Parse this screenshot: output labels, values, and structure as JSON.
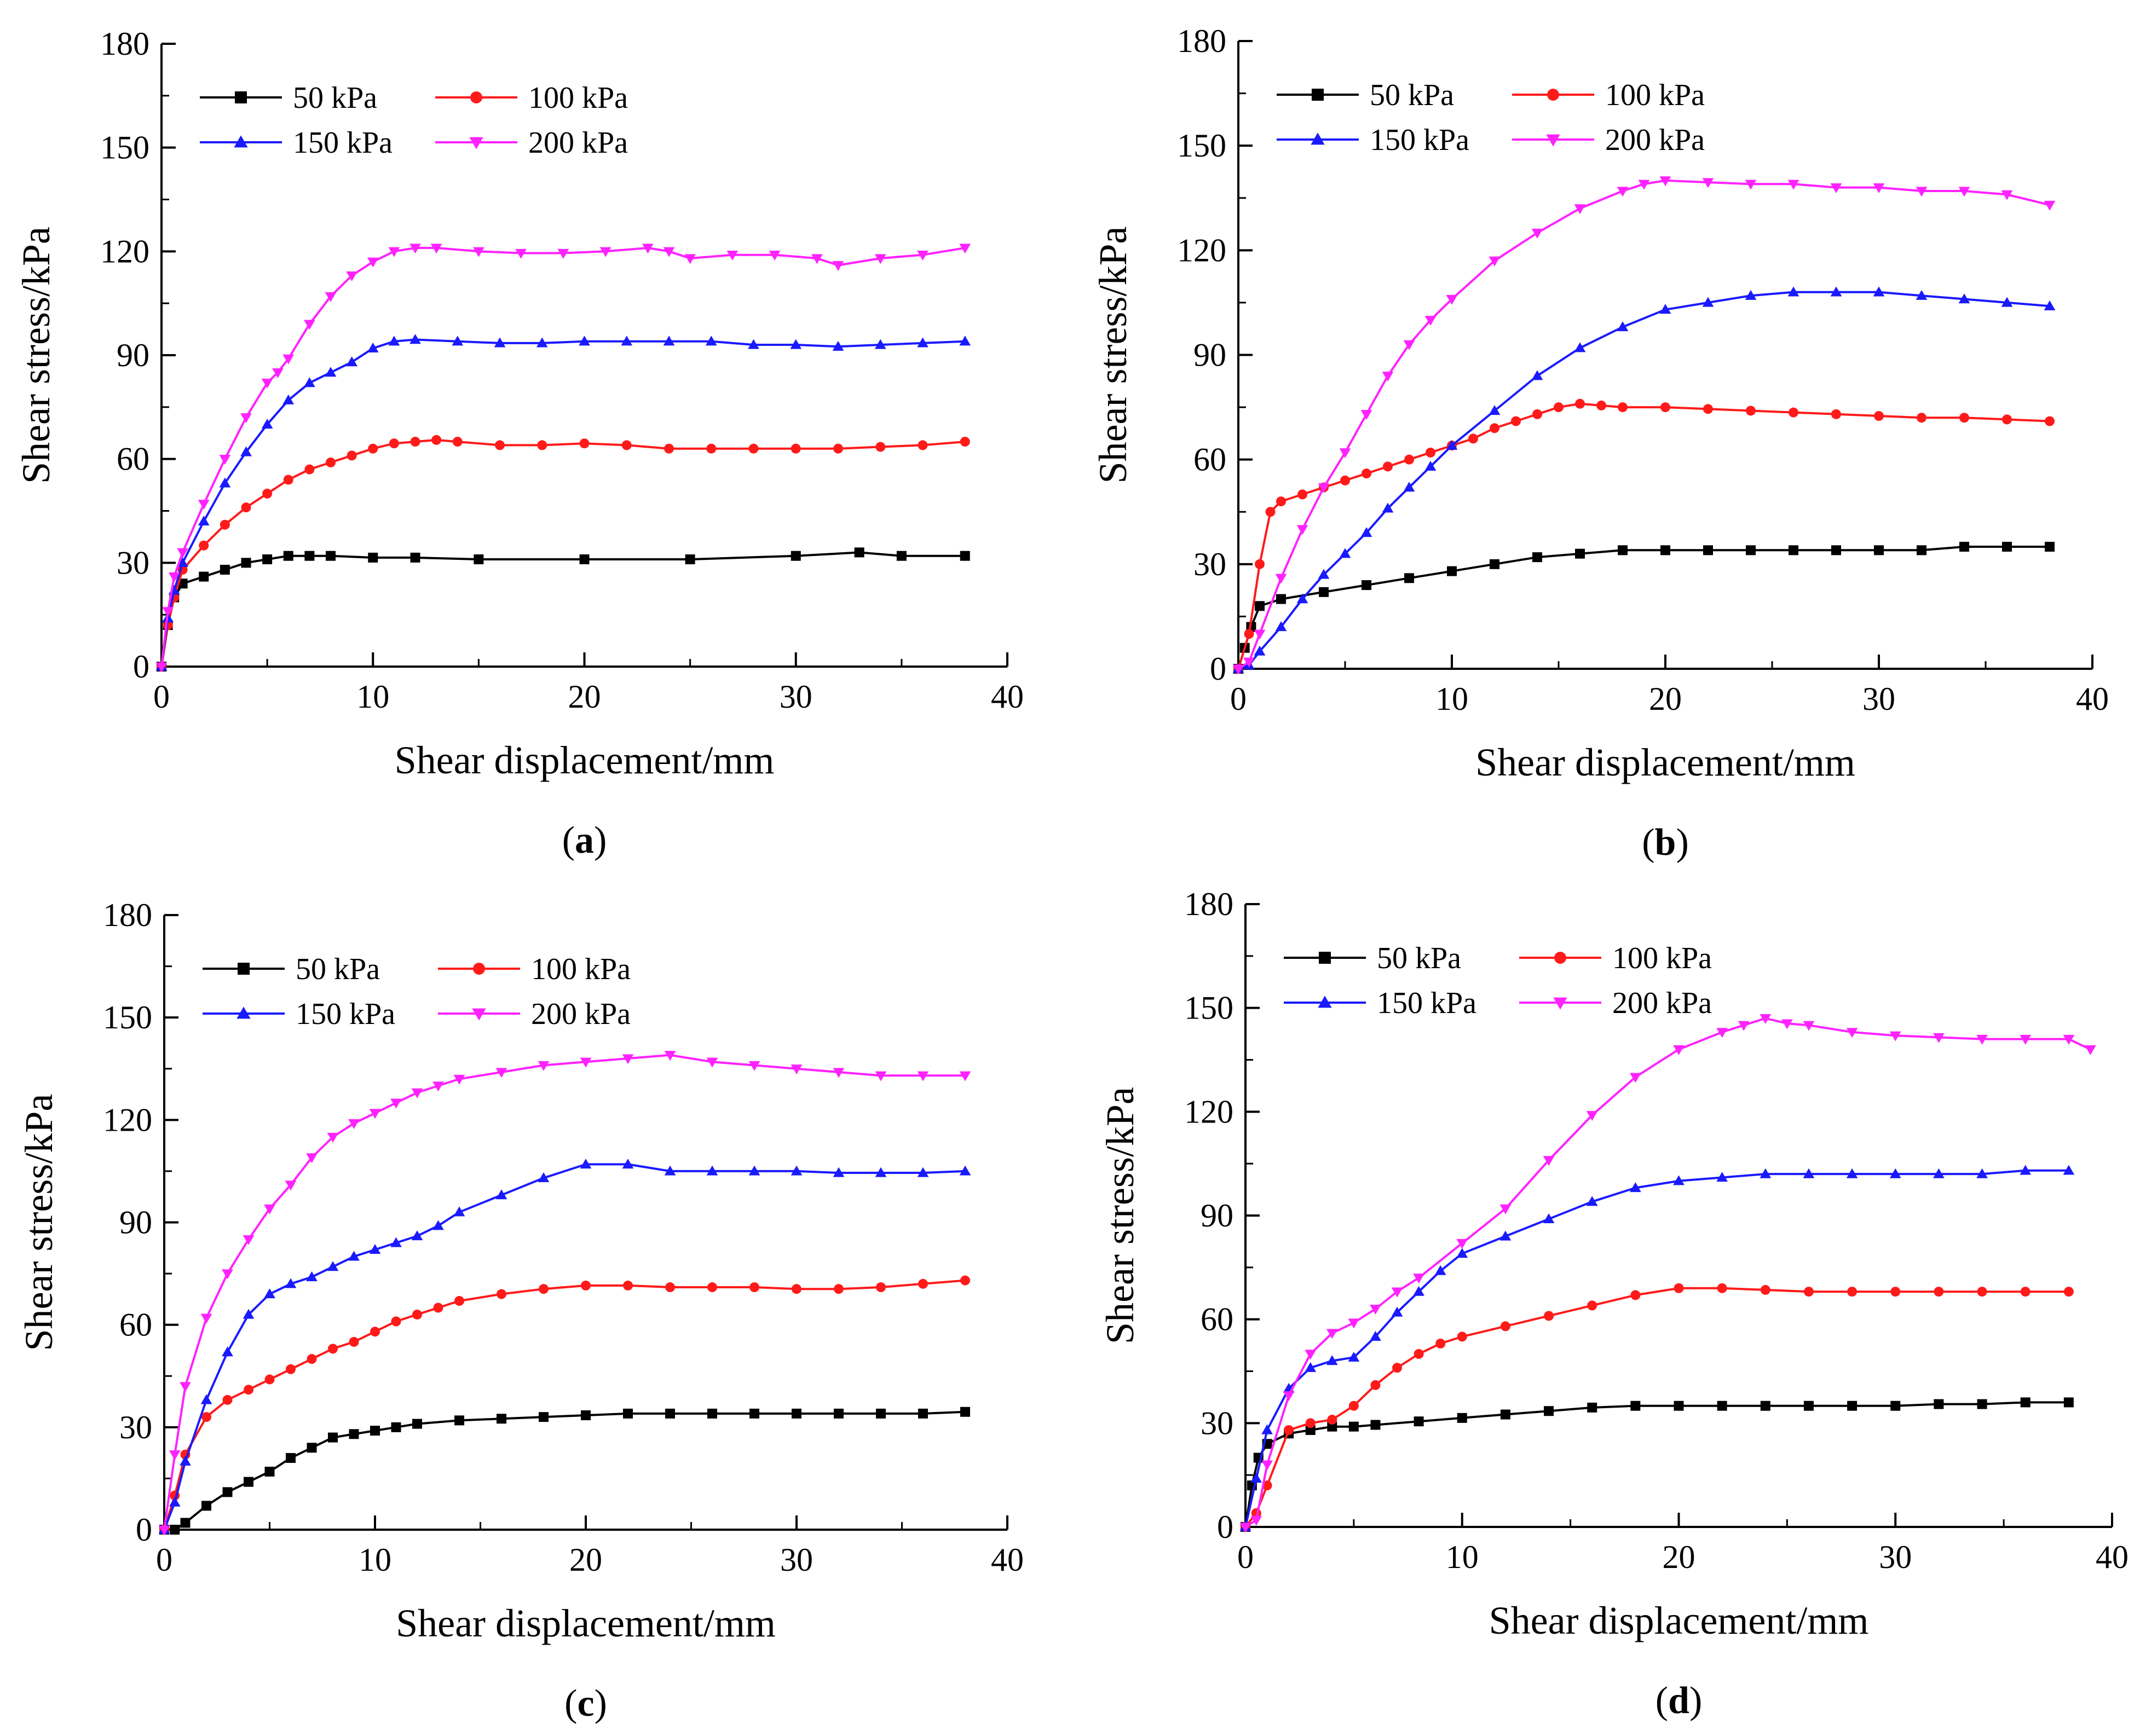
{
  "figure": {
    "panels_layout": "2x2 grid",
    "colors": {
      "50 kPa": "#000000",
      "100 kPa": "#ff1a1a",
      "150 kPa": "#1a1aff",
      "200 kPa": "#ff22ff"
    },
    "markers": {
      "50 kPa": "square",
      "100 kPa": "circle",
      "150 kPa": "triangle-up",
      "200 kPa": "triangle-down"
    }
  },
  "chart_data": [
    {
      "panel": "a",
      "caption": "(a)",
      "caption_letter": "a",
      "type": "line",
      "xlabel": "Shear displacement/mm",
      "ylabel": "Shear stress/kPa",
      "xlim": [
        0,
        40
      ],
      "ylim": [
        0,
        180
      ],
      "xticks": [
        "0",
        "10",
        "20",
        "30",
        "40"
      ],
      "yticks": [
        "0",
        "30",
        "60",
        "90",
        "120",
        "150",
        "180"
      ],
      "legend_position": "top-left",
      "series": [
        {
          "name": "50 kPa",
          "x": [
            0,
            0.3,
            0.6,
            1,
            2,
            3,
            4,
            5,
            6,
            7,
            8,
            10,
            12,
            15,
            20,
            25,
            30,
            33,
            35,
            38
          ],
          "y": [
            0,
            12,
            20,
            24,
            26,
            28,
            30,
            31,
            32,
            32,
            32,
            31.5,
            31.5,
            31,
            31,
            31,
            32,
            33,
            32,
            32
          ]
        },
        {
          "name": "100 kPa",
          "x": [
            0,
            0.3,
            0.6,
            1,
            2,
            3,
            4,
            5,
            6,
            7,
            8,
            9,
            10,
            11,
            12,
            13,
            14,
            16,
            18,
            20,
            22,
            24,
            26,
            28,
            30,
            32,
            34,
            36,
            38
          ],
          "y": [
            0,
            12,
            20,
            28,
            35,
            41,
            46,
            50,
            54,
            57,
            59,
            61,
            63,
            64.5,
            65,
            65.5,
            65,
            64,
            64,
            64.5,
            64,
            63,
            63,
            63,
            63,
            63,
            63.5,
            64,
            65
          ]
        },
        {
          "name": "150 kPa",
          "x": [
            0,
            0.3,
            0.6,
            1,
            2,
            3,
            4,
            5,
            6,
            7,
            8,
            9,
            10,
            11,
            12,
            14,
            16,
            18,
            20,
            22,
            24,
            26,
            28,
            30,
            32,
            34,
            36,
            38
          ],
          "y": [
            0,
            14,
            22,
            30,
            42,
            53,
            62,
            70,
            77,
            82,
            85,
            88,
            92,
            94,
            94.5,
            94,
            93.5,
            93.5,
            94,
            94,
            94,
            94,
            93,
            93,
            92.5,
            93,
            93.5,
            94
          ]
        },
        {
          "name": "200 kPa",
          "x": [
            0,
            0.3,
            0.6,
            1,
            2,
            3,
            4,
            5,
            5.5,
            6,
            7,
            8,
            9,
            10,
            11,
            12,
            13,
            15,
            17,
            19,
            21,
            23,
            24,
            25,
            27,
            29,
            31,
            32,
            34,
            36,
            38
          ],
          "y": [
            0,
            16,
            26,
            33,
            47,
            60,
            72,
            82,
            85,
            89,
            99,
            107,
            113,
            117,
            120,
            121,
            121,
            120,
            119.5,
            119.5,
            120,
            121,
            120,
            118,
            119,
            119,
            118,
            116,
            118,
            119,
            121
          ]
        }
      ]
    },
    {
      "panel": "b",
      "caption": "(b)",
      "caption_letter": "b",
      "type": "line",
      "xlabel": "Shear displacement/mm",
      "ylabel": "Shear stress/kPa",
      "xlim": [
        0,
        40
      ],
      "ylim": [
        0,
        180
      ],
      "xticks": [
        "0",
        "10",
        "20",
        "30",
        "40"
      ],
      "yticks": [
        "0",
        "30",
        "60",
        "90",
        "120",
        "150",
        "180"
      ],
      "legend_position": "top-left",
      "series": [
        {
          "name": "50 kPa",
          "x": [
            0,
            0.3,
            0.6,
            1,
            2,
            4,
            6,
            8,
            10,
            12,
            14,
            16,
            18,
            20,
            22,
            24,
            26,
            28,
            30,
            32,
            34,
            36,
            38
          ],
          "y": [
            0,
            6,
            12,
            18,
            20,
            22,
            24,
            26,
            28,
            30,
            32,
            33,
            34,
            34,
            34,
            34,
            34,
            34,
            34,
            34,
            35,
            35,
            35
          ]
        },
        {
          "name": "100 kPa",
          "x": [
            0,
            0.5,
            1,
            1.5,
            2,
            3,
            4,
            5,
            6,
            7,
            8,
            9,
            10,
            11,
            12,
            13,
            14,
            15,
            16,
            17,
            18,
            20,
            22,
            24,
            26,
            28,
            30,
            32,
            34,
            36,
            38
          ],
          "y": [
            0,
            10,
            30,
            45,
            48,
            50,
            52,
            54,
            56,
            58,
            60,
            62,
            64,
            66,
            69,
            71,
            73,
            75,
            76,
            75.5,
            75,
            75,
            74.5,
            74,
            73.5,
            73,
            72.5,
            72,
            72,
            71.5,
            71
          ]
        },
        {
          "name": "150 kPa",
          "x": [
            0,
            0.5,
            1,
            2,
            3,
            4,
            5,
            6,
            7,
            8,
            9,
            10,
            12,
            14,
            16,
            18,
            20,
            22,
            24,
            26,
            28,
            30,
            32,
            34,
            36,
            38
          ],
          "y": [
            0,
            1,
            5,
            12,
            20,
            27,
            33,
            39,
            46,
            52,
            58,
            64,
            74,
            84,
            92,
            98,
            103,
            105,
            107,
            108,
            108,
            108,
            107,
            106,
            105,
            104
          ]
        },
        {
          "name": "200 kPa",
          "x": [
            0,
            0.5,
            1,
            2,
            3,
            4,
            5,
            6,
            7,
            8,
            9,
            10,
            12,
            14,
            16,
            18,
            19,
            20,
            22,
            24,
            26,
            28,
            30,
            32,
            34,
            36,
            38
          ],
          "y": [
            0,
            2,
            10,
            26,
            40,
            52,
            62,
            73,
            84,
            93,
            100,
            106,
            117,
            125,
            132,
            137,
            139,
            140,
            139.5,
            139,
            139,
            138,
            138,
            137,
            137,
            136,
            133
          ]
        }
      ]
    },
    {
      "panel": "c",
      "caption": "(c)",
      "caption_letter": "c",
      "type": "line",
      "xlabel": "Shear displacement/mm",
      "ylabel": "Shear stress/kPa",
      "xlim": [
        0,
        40
      ],
      "ylim": [
        0,
        180
      ],
      "xticks": [
        "0",
        "10",
        "20",
        "30",
        "40"
      ],
      "yticks": [
        "0",
        "30",
        "60",
        "90",
        "120",
        "150",
        "180"
      ],
      "legend_position": "top-left",
      "series": [
        {
          "name": "50 kPa",
          "x": [
            0,
            0.5,
            1,
            2,
            3,
            4,
            5,
            6,
            7,
            8,
            9,
            10,
            11,
            12,
            14,
            16,
            18,
            20,
            22,
            24,
            26,
            28,
            30,
            32,
            34,
            36,
            38
          ],
          "y": [
            0,
            0,
            2,
            7,
            11,
            14,
            17,
            21,
            24,
            27,
            28,
            29,
            30,
            31,
            32,
            32.5,
            33,
            33.5,
            34,
            34,
            34,
            34,
            34,
            34,
            34,
            34,
            34.5
          ]
        },
        {
          "name": "100 kPa",
          "x": [
            0,
            0.5,
            1,
            2,
            3,
            4,
            5,
            6,
            7,
            8,
            9,
            10,
            11,
            12,
            13,
            14,
            16,
            18,
            20,
            22,
            24,
            26,
            28,
            30,
            32,
            34,
            36,
            38
          ],
          "y": [
            0,
            10,
            22,
            33,
            38,
            41,
            44,
            47,
            50,
            53,
            55,
            58,
            61,
            63,
            65,
            67,
            69,
            70.5,
            71.5,
            71.5,
            71,
            71,
            71,
            70.5,
            70.5,
            71,
            72,
            73
          ]
        },
        {
          "name": "150 kPa",
          "x": [
            0,
            0.5,
            1,
            2,
            3,
            4,
            5,
            6,
            7,
            8,
            9,
            10,
            11,
            12,
            13,
            14,
            16,
            18,
            20,
            22,
            24,
            26,
            28,
            30,
            32,
            34,
            36,
            38
          ],
          "y": [
            0,
            8,
            20,
            38,
            52,
            63,
            69,
            72,
            74,
            77,
            80,
            82,
            84,
            86,
            89,
            93,
            98,
            103,
            107,
            107,
            105,
            105,
            105,
            105,
            104.5,
            104.5,
            104.5,
            105
          ]
        },
        {
          "name": "200 kPa",
          "x": [
            0,
            0.5,
            1,
            2,
            3,
            4,
            5,
            6,
            7,
            8,
            9,
            10,
            11,
            12,
            13,
            14,
            16,
            18,
            20,
            22,
            24,
            26,
            28,
            30,
            32,
            34,
            36,
            38
          ],
          "y": [
            0,
            22,
            42,
            62,
            75,
            85,
            94,
            101,
            109,
            115,
            119,
            122,
            125,
            128,
            130,
            132,
            134,
            136,
            137,
            138,
            139,
            137,
            136,
            135,
            134,
            133,
            133,
            133
          ]
        }
      ]
    },
    {
      "panel": "d",
      "caption": "(d)",
      "caption_letter": "d",
      "type": "line",
      "xlabel": "Shear displacement/mm",
      "ylabel": "Shear stress/kPa",
      "xlim": [
        0,
        40
      ],
      "ylim": [
        0,
        180
      ],
      "xticks": [
        "0",
        "10",
        "20",
        "30",
        "40"
      ],
      "yticks": [
        "0",
        "30",
        "60",
        "90",
        "120",
        "150",
        "180"
      ],
      "legend_position": "top-left",
      "series": [
        {
          "name": "50 kPa",
          "x": [
            0,
            0.3,
            0.6,
            1,
            2,
            3,
            4,
            5,
            6,
            8,
            10,
            12,
            14,
            16,
            18,
            20,
            22,
            24,
            26,
            28,
            30,
            32,
            34,
            36,
            38
          ],
          "y": [
            0,
            12,
            20,
            24,
            27,
            28,
            29,
            29,
            29.5,
            30.5,
            31.5,
            32.5,
            33.5,
            34.5,
            35,
            35,
            35,
            35,
            35,
            35,
            35,
            35.5,
            35.5,
            36,
            36
          ]
        },
        {
          "name": "100 kPa",
          "x": [
            0,
            0.5,
            1,
            2,
            3,
            4,
            5,
            6,
            7,
            8,
            9,
            10,
            12,
            14,
            16,
            18,
            20,
            22,
            24,
            26,
            28,
            30,
            32,
            34,
            36,
            38
          ],
          "y": [
            0,
            4,
            12,
            28,
            30,
            31,
            35,
            41,
            46,
            50,
            53,
            55,
            58,
            61,
            64,
            67,
            69,
            69,
            68.5,
            68,
            68,
            68,
            68,
            68,
            68,
            68
          ]
        },
        {
          "name": "150 kPa",
          "x": [
            0,
            0.5,
            1,
            2,
            3,
            4,
            5,
            6,
            7,
            8,
            9,
            10,
            12,
            14,
            16,
            18,
            20,
            22,
            24,
            26,
            28,
            30,
            32,
            34,
            36,
            38
          ],
          "y": [
            0,
            14,
            28,
            40,
            46,
            48,
            49,
            55,
            62,
            68,
            74,
            79,
            84,
            89,
            94,
            98,
            100,
            101,
            102,
            102,
            102,
            102,
            102,
            102,
            103,
            103
          ]
        },
        {
          "name": "200 kPa",
          "x": [
            0,
            0.5,
            1,
            2,
            3,
            4,
            5,
            6,
            7,
            8,
            10,
            12,
            14,
            16,
            18,
            20,
            22,
            23,
            24,
            25,
            26,
            28,
            30,
            32,
            34,
            36,
            38,
            39
          ],
          "y": [
            0,
            2,
            18,
            38,
            50,
            56,
            59,
            63,
            68,
            72,
            82,
            92,
            106,
            119,
            130,
            138,
            143,
            145,
            147,
            145.5,
            145,
            143,
            142,
            141.5,
            141,
            141,
            141,
            138
          ]
        }
      ]
    }
  ]
}
